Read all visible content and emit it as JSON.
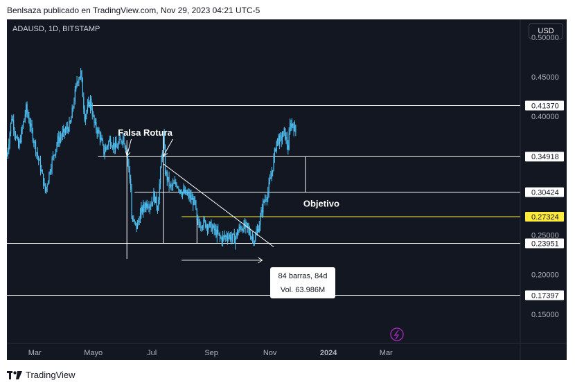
{
  "header": {
    "publisher_text": "Benlsaza publicado en TradingView.com, Nov 29, 2023 04:21 UTC-5"
  },
  "chart_header": {
    "symbol": "ADAUSD, 1D, BITSTAMP",
    "currency": "USD"
  },
  "footer": {
    "brand": "TradingView",
    "logo_icon": "tradingview-logo-icon"
  },
  "colors": {
    "background": "#131722",
    "candle": "#4fc3f7",
    "line": "#ffffff",
    "highlight": "#ffeb3b",
    "axis_text": "#b2b5be"
  },
  "chart_data": {
    "type": "candlestick",
    "title": "ADAUSD, 1D, BITSTAMP",
    "x_ticks": [
      "Mar",
      "Mayo",
      "Jul",
      "Sep",
      "Nov",
      "2024",
      "Mar"
    ],
    "y_ticks": [
      "0.50000",
      "0.45000",
      "0.40000",
      "0.25000",
      "0.20000",
      "0.15000"
    ],
    "ylim": [
      0.1,
      0.52
    ],
    "levels": [
      {
        "label": "0.41370",
        "value": 0.4137,
        "highlight": false
      },
      {
        "label": "0.34918",
        "value": 0.34918,
        "highlight": false
      },
      {
        "label": "0.30424",
        "value": 0.30424,
        "highlight": false
      },
      {
        "label": "0.27324",
        "value": 0.27324,
        "highlight": true
      },
      {
        "label": "0.23951",
        "value": 0.23951,
        "highlight": false
      },
      {
        "label": "0.17397",
        "value": 0.17397,
        "highlight": false
      }
    ],
    "price_path": [
      {
        "d": "2023-01-31",
        "p": 0.35
      },
      {
        "d": "2023-02-05",
        "p": 0.4
      },
      {
        "d": "2023-02-12",
        "p": 0.36
      },
      {
        "d": "2023-02-20",
        "p": 0.41
      },
      {
        "d": "2023-02-28",
        "p": 0.37
      },
      {
        "d": "2023-03-08",
        "p": 0.33
      },
      {
        "d": "2023-03-12",
        "p": 0.305
      },
      {
        "d": "2023-03-18",
        "p": 0.34
      },
      {
        "d": "2023-03-25",
        "p": 0.37
      },
      {
        "d": "2023-04-01",
        "p": 0.38
      },
      {
        "d": "2023-04-07",
        "p": 0.39
      },
      {
        "d": "2023-04-14",
        "p": 0.445
      },
      {
        "d": "2023-04-18",
        "p": 0.455
      },
      {
        "d": "2023-04-22",
        "p": 0.4
      },
      {
        "d": "2023-04-28",
        "p": 0.42
      },
      {
        "d": "2023-05-02",
        "p": 0.39
      },
      {
        "d": "2023-05-08",
        "p": 0.375
      },
      {
        "d": "2023-05-12",
        "p": 0.355
      },
      {
        "d": "2023-05-18",
        "p": 0.37
      },
      {
        "d": "2023-05-25",
        "p": 0.36
      },
      {
        "d": "2023-06-01",
        "p": 0.375
      },
      {
        "d": "2023-06-05",
        "p": 0.355
      },
      {
        "d": "2023-06-09",
        "p": 0.31
      },
      {
        "d": "2023-06-10",
        "p": 0.27
      },
      {
        "d": "2023-06-15",
        "p": 0.26
      },
      {
        "d": "2023-06-20",
        "p": 0.28
      },
      {
        "d": "2023-06-25",
        "p": 0.29
      },
      {
        "d": "2023-06-30",
        "p": 0.29
      },
      {
        "d": "2023-07-03",
        "p": 0.3
      },
      {
        "d": "2023-07-07",
        "p": 0.285
      },
      {
        "d": "2023-07-13",
        "p": 0.375
      },
      {
        "d": "2023-07-15",
        "p": 0.33
      },
      {
        "d": "2023-07-20",
        "p": 0.31
      },
      {
        "d": "2023-07-27",
        "p": 0.315
      },
      {
        "d": "2023-08-01",
        "p": 0.305
      },
      {
        "d": "2023-08-08",
        "p": 0.3
      },
      {
        "d": "2023-08-15",
        "p": 0.29
      },
      {
        "d": "2023-08-17",
        "p": 0.265
      },
      {
        "d": "2023-08-25",
        "p": 0.265
      },
      {
        "d": "2023-09-01",
        "p": 0.26
      },
      {
        "d": "2023-09-08",
        "p": 0.25
      },
      {
        "d": "2023-09-11",
        "p": 0.245
      },
      {
        "d": "2023-09-18",
        "p": 0.25
      },
      {
        "d": "2023-09-25",
        "p": 0.245
      },
      {
        "d": "2023-10-01",
        "p": 0.26
      },
      {
        "d": "2023-10-08",
        "p": 0.26
      },
      {
        "d": "2023-10-12",
        "p": 0.25
      },
      {
        "d": "2023-10-16",
        "p": 0.245
      },
      {
        "d": "2023-10-20",
        "p": 0.26
      },
      {
        "d": "2023-10-25",
        "p": 0.29
      },
      {
        "d": "2023-10-30",
        "p": 0.305
      },
      {
        "d": "2023-11-03",
        "p": 0.33
      },
      {
        "d": "2023-11-08",
        "p": 0.37
      },
      {
        "d": "2023-11-12",
        "p": 0.37
      },
      {
        "d": "2023-11-16",
        "p": 0.38
      },
      {
        "d": "2023-11-20",
        "p": 0.36
      },
      {
        "d": "2023-11-22",
        "p": 0.39
      },
      {
        "d": "2023-11-25",
        "p": 0.39
      },
      {
        "d": "2023-11-28",
        "p": 0.38
      }
    ],
    "annotations": {
      "false_breakout": {
        "text": "Falsa Rotura",
        "targets": [
          {
            "d": "2023-06-05",
            "p": 0.35
          },
          {
            "d": "2023-07-13",
            "p": 0.35
          }
        ]
      },
      "objective": {
        "text": "Objetivo",
        "from": 0.34918,
        "to": 0.30424,
        "d": "2023-12-08"
      },
      "trendline": {
        "from": {
          "d": "2023-07-13",
          "p": 0.34
        },
        "to": {
          "d": "2023-11-05",
          "p": 0.235
        }
      },
      "range_measure": {
        "from": {
          "d": "2023-08-01",
          "p": 0.22
        },
        "to": {
          "d": "2023-10-24",
          "p": 0.22
        }
      },
      "range_box": {
        "bars": "84 barras, 84d",
        "volume": "Vol. 63.986M"
      },
      "support_base": {
        "from": {
          "d": "2023-06-01",
          "p": 0.24
        },
        "to": {
          "d": "2023-10-25",
          "p": 0.24
        }
      },
      "resistance_short": {
        "from": {
          "d": "2023-04-24",
          "p": 0.4137
        },
        "to": {
          "d": "2023-05-08",
          "p": 0.4137
        }
      },
      "verticals": [
        {
          "d": "2023-06-05",
          "top": 0.37,
          "bottom": 0.22
        },
        {
          "d": "2023-07-13",
          "top": 0.375,
          "bottom": 0.24
        },
        {
          "d": "2023-08-17",
          "top": 0.27,
          "bottom": 0.24
        }
      ]
    }
  }
}
